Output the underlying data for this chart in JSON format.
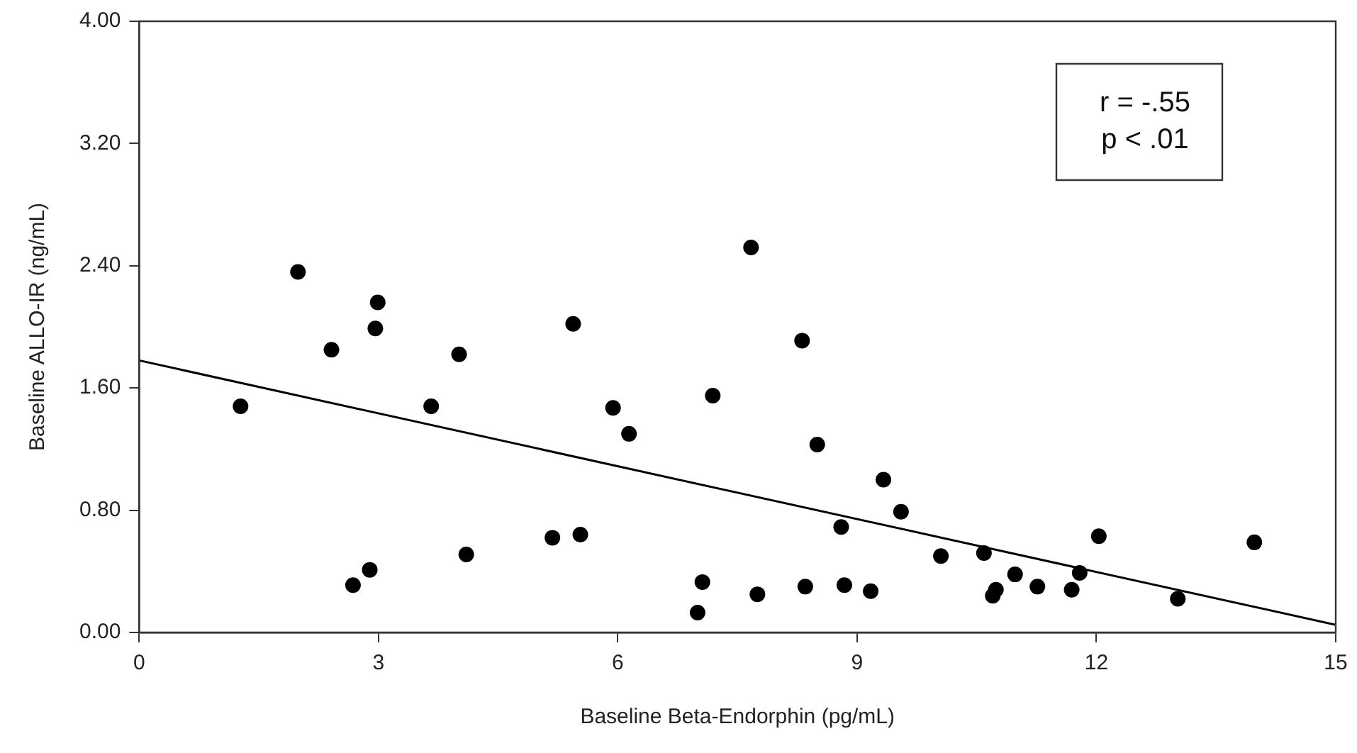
{
  "chart_data": {
    "type": "scatter",
    "xlabel": "Baseline Beta-Endorphin (pg/mL)",
    "ylabel": "Baseline ALLO-IR (ng/mL)",
    "xlim": [
      0,
      15
    ],
    "xticks": [
      0,
      3,
      6,
      9,
      12,
      15
    ],
    "ylim": [
      0,
      4
    ],
    "yticks": [
      {
        "value": 0,
        "label": "0.00"
      },
      {
        "value": 0.8,
        "label": "0.80"
      },
      {
        "value": 1.6,
        "label": "1.60"
      },
      {
        "value": 2.4,
        "label": "2.40"
      },
      {
        "value": 3.2,
        "label": "3.20"
      },
      {
        "value": 4,
        "label": "4.00"
      }
    ],
    "grid": false,
    "legend": false,
    "marker": "circle",
    "annotations": [
      "r = -.55",
      "p < .01"
    ],
    "series": [
      {
        "color": "#000000",
        "x": [
          1.27,
          1.99,
          2.41,
          2.68,
          2.89,
          2.96,
          2.99,
          3.66,
          4.01,
          4.1,
          5.18,
          5.44,
          5.53,
          5.94,
          6.14,
          7.06,
          7.0,
          7.19,
          7.67,
          7.75,
          8.31,
          8.35,
          8.5,
          8.8,
          8.84,
          9.17,
          9.33,
          9.55,
          10.05,
          10.59,
          10.7,
          10.74,
          10.98,
          11.26,
          11.69,
          11.79,
          12.03,
          13.02,
          13.98
        ],
        "values": [
          1.48,
          2.36,
          1.85,
          0.31,
          0.41,
          1.99,
          2.16,
          1.48,
          1.82,
          0.51,
          0.62,
          2.02,
          0.64,
          1.47,
          1.3,
          0.33,
          0.13,
          1.55,
          2.52,
          0.25,
          1.91,
          0.3,
          1.23,
          0.69,
          0.31,
          0.27,
          1.0,
          0.79,
          0.5,
          0.52,
          0.24,
          0.28,
          0.38,
          0.3,
          0.28,
          0.39,
          0.63,
          0.22,
          0.59
        ]
      },
      {
        "type": "line",
        "color": "#000000",
        "marker": "none",
        "x": [
          0,
          15
        ],
        "values": [
          1.78,
          0.05
        ]
      }
    ]
  }
}
